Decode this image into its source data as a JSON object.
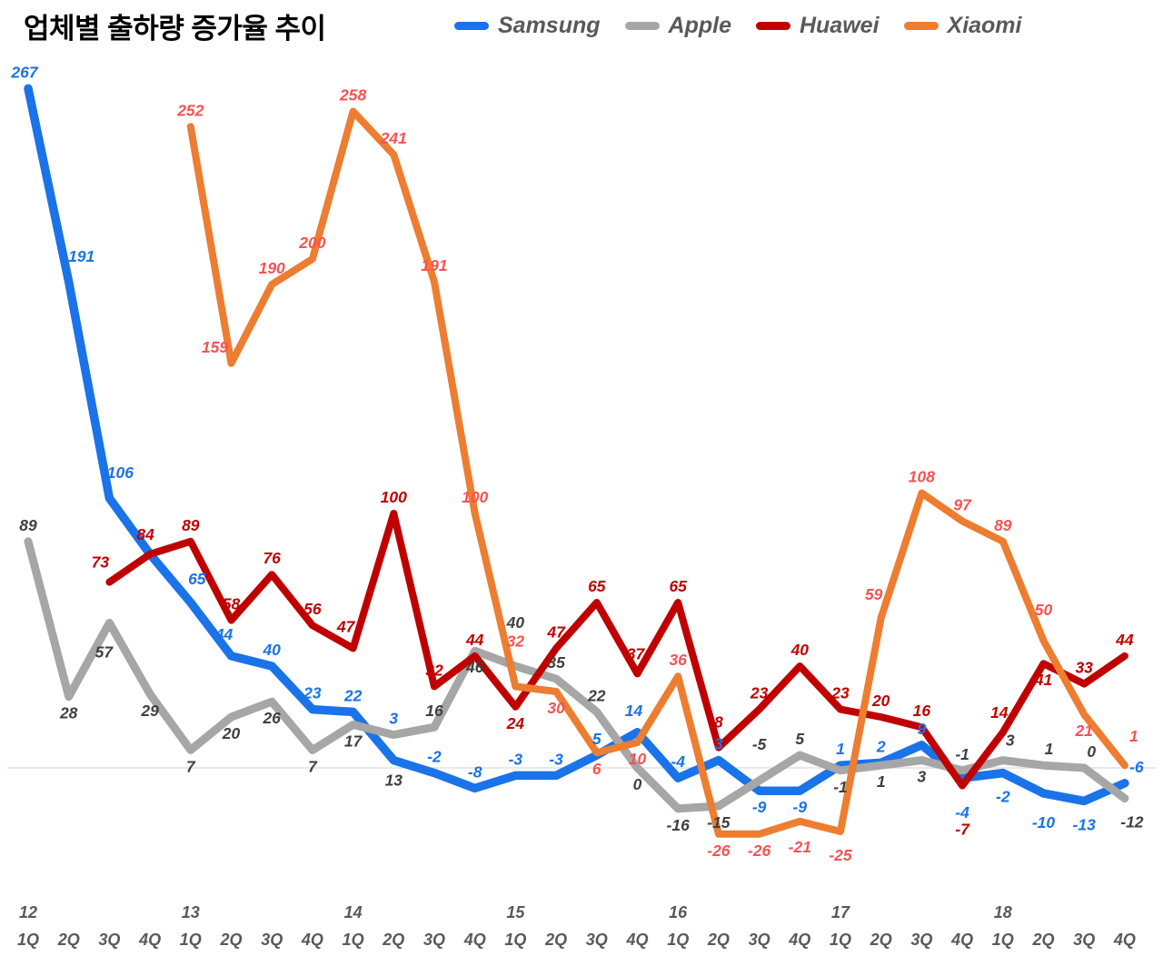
{
  "chart_data": {
    "type": "line",
    "title": "업체별 출하량 증가율 추이",
    "grid": false,
    "legend_position": "top",
    "ylim": [
      -30,
      270
    ],
    "axis_color": "#d9d9d9",
    "axis_text_color": "#595959",
    "layout": {
      "x0": 31,
      "xstep": 44.7,
      "y0": 845,
      "yscale": 2.8,
      "q_baseline": 1040,
      "year_baseline": 1010
    },
    "x_axis": {
      "quarters": [
        "1Q",
        "2Q",
        "3Q",
        "4Q",
        "1Q",
        "2Q",
        "3Q",
        "4Q",
        "1Q",
        "2Q",
        "3Q",
        "4Q",
        "1Q",
        "2Q",
        "3Q",
        "4Q",
        "1Q",
        "2Q",
        "3Q",
        "4Q",
        "1Q",
        "2Q",
        "3Q",
        "4Q",
        "1Q",
        "2Q",
        "3Q",
        "4Q"
      ],
      "years": [
        {
          "label": "12",
          "index": 0
        },
        {
          "label": "13",
          "index": 4
        },
        {
          "label": "14",
          "index": 8
        },
        {
          "label": "15",
          "index": 12
        },
        {
          "label": "16",
          "index": 16
        },
        {
          "label": "17",
          "index": 20
        },
        {
          "label": "18",
          "index": 24
        }
      ]
    },
    "series": [
      {
        "name": "Samsung",
        "color": "#1a73e8",
        "label_color": "#1a73e8",
        "line_width": 9.5,
        "values": [
          267,
          191,
          106,
          84,
          65,
          44,
          40,
          23,
          22,
          3,
          -2,
          -8,
          -3,
          -3,
          5,
          14,
          -4,
          3,
          -9,
          -9,
          1,
          2,
          9,
          -4,
          -2,
          -10,
          -13,
          -6
        ],
        "labels": [
          "267",
          "191",
          "106",
          "",
          "65",
          "44",
          "40",
          "23",
          "22",
          "3",
          "-2",
          "-8",
          "-3",
          "-3",
          "5",
          "14",
          "-4",
          "3",
          "-9",
          "-9",
          "1",
          "2",
          "9",
          "-4",
          "-2",
          "-10",
          "-13",
          "-6"
        ],
        "label_below": [
          18,
          19,
          23,
          24,
          25,
          26
        ],
        "label_adjust": {
          "0": [
            -4,
            0
          ],
          "1": [
            14,
            -10
          ],
          "2": [
            12,
            -10
          ],
          "4": [
            7,
            -8
          ],
          "5": [
            -8,
            -6
          ],
          "9": [
            0,
            -28
          ],
          "15": [
            -4,
            -6
          ],
          "23": [
            0,
            20
          ],
          "24": [
            0,
            8
          ],
          "25": [
            0,
            14
          ],
          "26": [
            0,
            8
          ],
          "27": [
            13,
            0
          ]
        }
      },
      {
        "name": "Apple",
        "color": "#a6a6a6",
        "label_color": "#404040",
        "line_width": 9,
        "values": [
          89,
          28,
          57,
          29,
          7,
          20,
          26,
          7,
          17,
          13,
          16,
          46,
          40,
          35,
          22,
          0,
          -16,
          -15,
          -5,
          5,
          -1,
          1,
          3,
          -1,
          3,
          1,
          0,
          -12
        ],
        "labels": [
          "89",
          "28",
          "57",
          "29",
          "7",
          "20",
          "26",
          "7",
          "17",
          "13",
          "16",
          "46",
          "40",
          "35",
          "22",
          "0",
          "-16",
          "-15",
          "-5",
          "5",
          "-1",
          "1",
          "3",
          "-1",
          "3",
          "1",
          "0",
          "-12"
        ],
        "label_below": [
          1,
          2,
          3,
          4,
          5,
          6,
          7,
          8,
          9,
          11,
          15,
          16,
          17,
          20,
          21,
          22,
          27
        ],
        "label_adjust": {
          "2": [
            -6,
            14
          ],
          "9": [
            0,
            32
          ],
          "12": [
            0,
            -30
          ],
          "18": [
            0,
            -22
          ],
          "24": [
            8,
            -4
          ],
          "25": [
            6,
            0
          ],
          "26": [
            8,
            0
          ],
          "27": [
            8,
            8
          ]
        }
      },
      {
        "name": "Huawei",
        "color": "#c00000",
        "label_color": "#c00000",
        "line_width": 8,
        "values": [
          null,
          null,
          73,
          84,
          89,
          58,
          76,
          56,
          47,
          100,
          32,
          44,
          24,
          47,
          65,
          37,
          65,
          8,
          23,
          40,
          23,
          20,
          16,
          -7,
          14,
          41,
          33,
          44
        ],
        "labels": [
          "",
          "",
          "73",
          "84",
          "89",
          "58",
          "76",
          "56",
          "47",
          "100",
          "32",
          "44",
          "24",
          "47",
          "65",
          "37",
          "65",
          "8",
          "23",
          "40",
          "23",
          "20",
          "16",
          "-7",
          "14",
          "41",
          "33",
          "44"
        ],
        "label_below": [
          12,
          23,
          25
        ],
        "label_adjust": {
          "2": [
            -10,
            -4
          ],
          "3": [
            -5,
            -4
          ],
          "8": [
            -8,
            -6
          ],
          "15": [
            -2,
            -4
          ],
          "17": [
            0,
            -10
          ],
          "23": [
            0,
            30
          ],
          "24": [
            -4,
            -4
          ]
        },
        "start_quarter": "12 3Q"
      },
      {
        "name": "Xiaomi",
        "color": "#ed7d31",
        "label_color": "#fa5252",
        "line_width": 8,
        "values": [
          null,
          null,
          null,
          null,
          252,
          159,
          190,
          200,
          258,
          241,
          191,
          100,
          32,
          30,
          6,
          10,
          36,
          -26,
          -26,
          -21,
          -25,
          59,
          108,
          97,
          89,
          50,
          21,
          1
        ],
        "labels": [
          "",
          "",
          "",
          "",
          "252",
          "159",
          "190",
          "200",
          "258",
          "241",
          "191",
          "100",
          "32",
          "30",
          "6",
          "10",
          "36",
          "-26",
          "-26",
          "-21",
          "-25",
          "59",
          "108",
          "97",
          "89",
          "50",
          "21",
          "1"
        ],
        "label_below": [
          13,
          14,
          15,
          17,
          18,
          19,
          20,
          26
        ],
        "label_adjust": {
          "5": [
            -18,
            0
          ],
          "12": [
            0,
            -32
          ],
          "19": [
            0,
            10
          ],
          "20": [
            0,
            8
          ],
          "21": [
            -8,
            -8
          ],
          "25": [
            0,
            -16
          ],
          "27": [
            10,
            -14
          ]
        },
        "start_quarter": "13 1Q"
      }
    ]
  }
}
